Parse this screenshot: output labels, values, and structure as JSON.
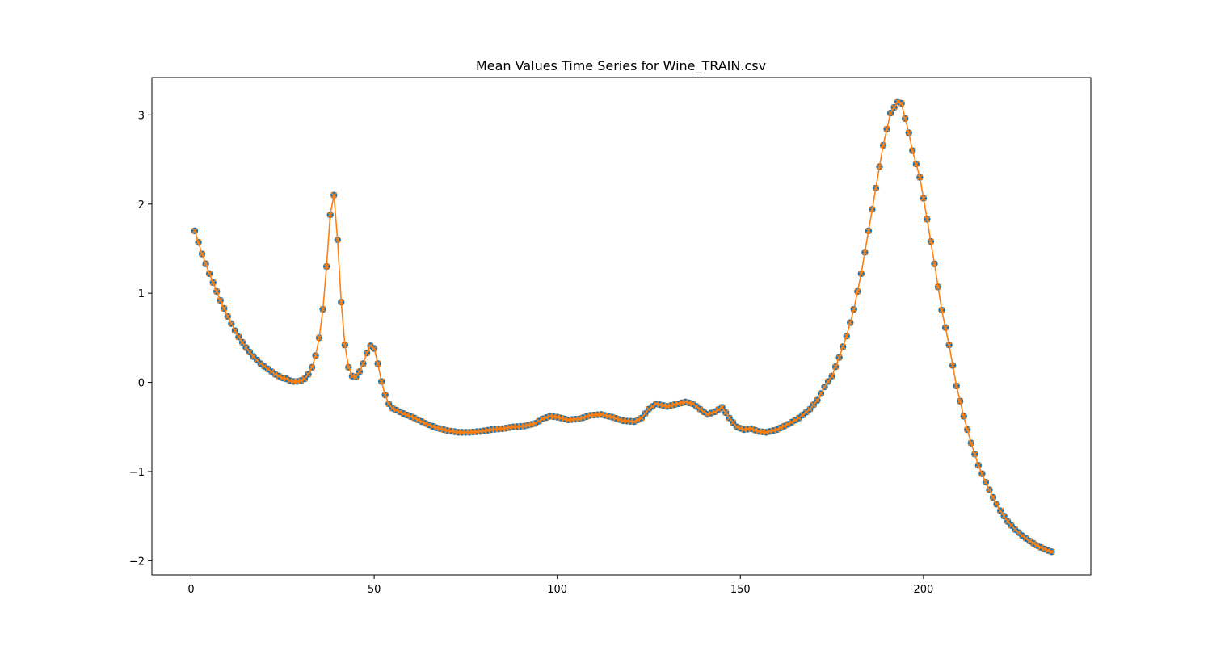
{
  "chart_data": {
    "type": "line",
    "title": "Mean Values Time Series for Wine_TRAIN.csv",
    "xlabel": "",
    "ylabel": "",
    "xlim": [
      -10.7,
      245.7
    ],
    "ylim": [
      -2.16,
      3.42
    ],
    "x_ticks": [
      0,
      50,
      100,
      150,
      200
    ],
    "y_ticks": [
      -2,
      -1,
      0,
      1,
      2,
      3
    ],
    "x_tick_labels": [
      "0",
      "50",
      "100",
      "150",
      "200"
    ],
    "y_tick_labels": [
      "−2",
      "−1",
      "0",
      "1",
      "2",
      "3"
    ],
    "grid": false,
    "legend": "none",
    "colors": {
      "markers_circle": "#1f77b4",
      "line_and_x": "#ff7f0e"
    },
    "anchors": [
      [
        1,
        1.7
      ],
      [
        2,
        1.57
      ],
      [
        3,
        1.44
      ],
      [
        4,
        1.33
      ],
      [
        5,
        1.22
      ],
      [
        6,
        1.12
      ],
      [
        7,
        1.02
      ],
      [
        8,
        0.92
      ],
      [
        9,
        0.83
      ],
      [
        10,
        0.74
      ],
      [
        11,
        0.66
      ],
      [
        12,
        0.58
      ],
      [
        13,
        0.51
      ],
      [
        14,
        0.45
      ],
      [
        15,
        0.39
      ],
      [
        16,
        0.34
      ],
      [
        17,
        0.29
      ],
      [
        18,
        0.25
      ],
      [
        19,
        0.21
      ],
      [
        20,
        0.18
      ],
      [
        21,
        0.15
      ],
      [
        22,
        0.12
      ],
      [
        23,
        0.09
      ],
      [
        24,
        0.07
      ],
      [
        25,
        0.05
      ],
      [
        26,
        0.04
      ],
      [
        27,
        0.02
      ],
      [
        28,
        0.01
      ],
      [
        29,
        0.01
      ],
      [
        30,
        0.02
      ],
      [
        31,
        0.04
      ],
      [
        32,
        0.09
      ],
      [
        33,
        0.17
      ],
      [
        34,
        0.3
      ],
      [
        35,
        0.5
      ],
      [
        36,
        0.82
      ],
      [
        37,
        1.3
      ],
      [
        38,
        1.88
      ],
      [
        39,
        2.1
      ],
      [
        40,
        1.6
      ],
      [
        41,
        0.9
      ],
      [
        42,
        0.42
      ],
      [
        43,
        0.17
      ],
      [
        44,
        0.07
      ],
      [
        45,
        0.06
      ],
      [
        46,
        0.12
      ],
      [
        47,
        0.21
      ],
      [
        48,
        0.33
      ],
      [
        49,
        0.41
      ],
      [
        50,
        0.38
      ],
      [
        51,
        0.21
      ],
      [
        52,
        0.01
      ],
      [
        53,
        -0.14
      ],
      [
        54,
        -0.24
      ],
      [
        55,
        -0.29
      ],
      [
        58,
        -0.35
      ],
      [
        61,
        -0.4
      ],
      [
        64,
        -0.46
      ],
      [
        67,
        -0.51
      ],
      [
        70,
        -0.54
      ],
      [
        73,
        -0.56
      ],
      [
        76,
        -0.56
      ],
      [
        79,
        -0.55
      ],
      [
        82,
        -0.53
      ],
      [
        85,
        -0.52
      ],
      [
        88,
        -0.5
      ],
      [
        91,
        -0.49
      ],
      [
        94,
        -0.46
      ],
      [
        96,
        -0.41
      ],
      [
        98,
        -0.38
      ],
      [
        100,
        -0.39
      ],
      [
        103,
        -0.42
      ],
      [
        106,
        -0.41
      ],
      [
        109,
        -0.37
      ],
      [
        112,
        -0.36
      ],
      [
        115,
        -0.39
      ],
      [
        118,
        -0.43
      ],
      [
        121,
        -0.44
      ],
      [
        123,
        -0.4
      ],
      [
        125,
        -0.3
      ],
      [
        127,
        -0.24
      ],
      [
        130,
        -0.27
      ],
      [
        133,
        -0.24
      ],
      [
        135,
        -0.22
      ],
      [
        137,
        -0.24
      ],
      [
        139,
        -0.3
      ],
      [
        141,
        -0.36
      ],
      [
        143,
        -0.33
      ],
      [
        145,
        -0.28
      ],
      [
        147,
        -0.4
      ],
      [
        149,
        -0.5
      ],
      [
        151,
        -0.53
      ],
      [
        153,
        -0.52
      ],
      [
        155,
        -0.55
      ],
      [
        157,
        -0.56
      ],
      [
        160,
        -0.53
      ],
      [
        163,
        -0.47
      ],
      [
        166,
        -0.4
      ],
      [
        169,
        -0.3
      ],
      [
        171,
        -0.2
      ],
      [
        173,
        -0.05
      ],
      [
        175,
        0.07
      ],
      [
        177,
        0.28
      ],
      [
        179,
        0.52
      ],
      [
        181,
        0.82
      ],
      [
        183,
        1.22
      ],
      [
        185,
        1.7
      ],
      [
        187,
        2.18
      ],
      [
        189,
        2.66
      ],
      [
        191,
        3.02
      ],
      [
        193,
        3.15
      ],
      [
        194,
        3.13
      ],
      [
        195,
        2.96
      ],
      [
        196,
        2.8
      ],
      [
        197,
        2.6
      ],
      [
        199,
        2.3
      ],
      [
        201,
        1.83
      ],
      [
        203,
        1.33
      ],
      [
        205,
        0.81
      ],
      [
        207,
        0.42
      ],
      [
        209,
        -0.04
      ],
      [
        211,
        -0.38
      ],
      [
        213,
        -0.68
      ],
      [
        215,
        -0.93
      ],
      [
        217,
        -1.12
      ],
      [
        219,
        -1.29
      ],
      [
        221,
        -1.44
      ],
      [
        223,
        -1.56
      ],
      [
        225,
        -1.65
      ],
      [
        227,
        -1.72
      ],
      [
        229,
        -1.78
      ],
      [
        231,
        -1.83
      ],
      [
        233,
        -1.87
      ],
      [
        235,
        -1.9
      ]
    ]
  }
}
